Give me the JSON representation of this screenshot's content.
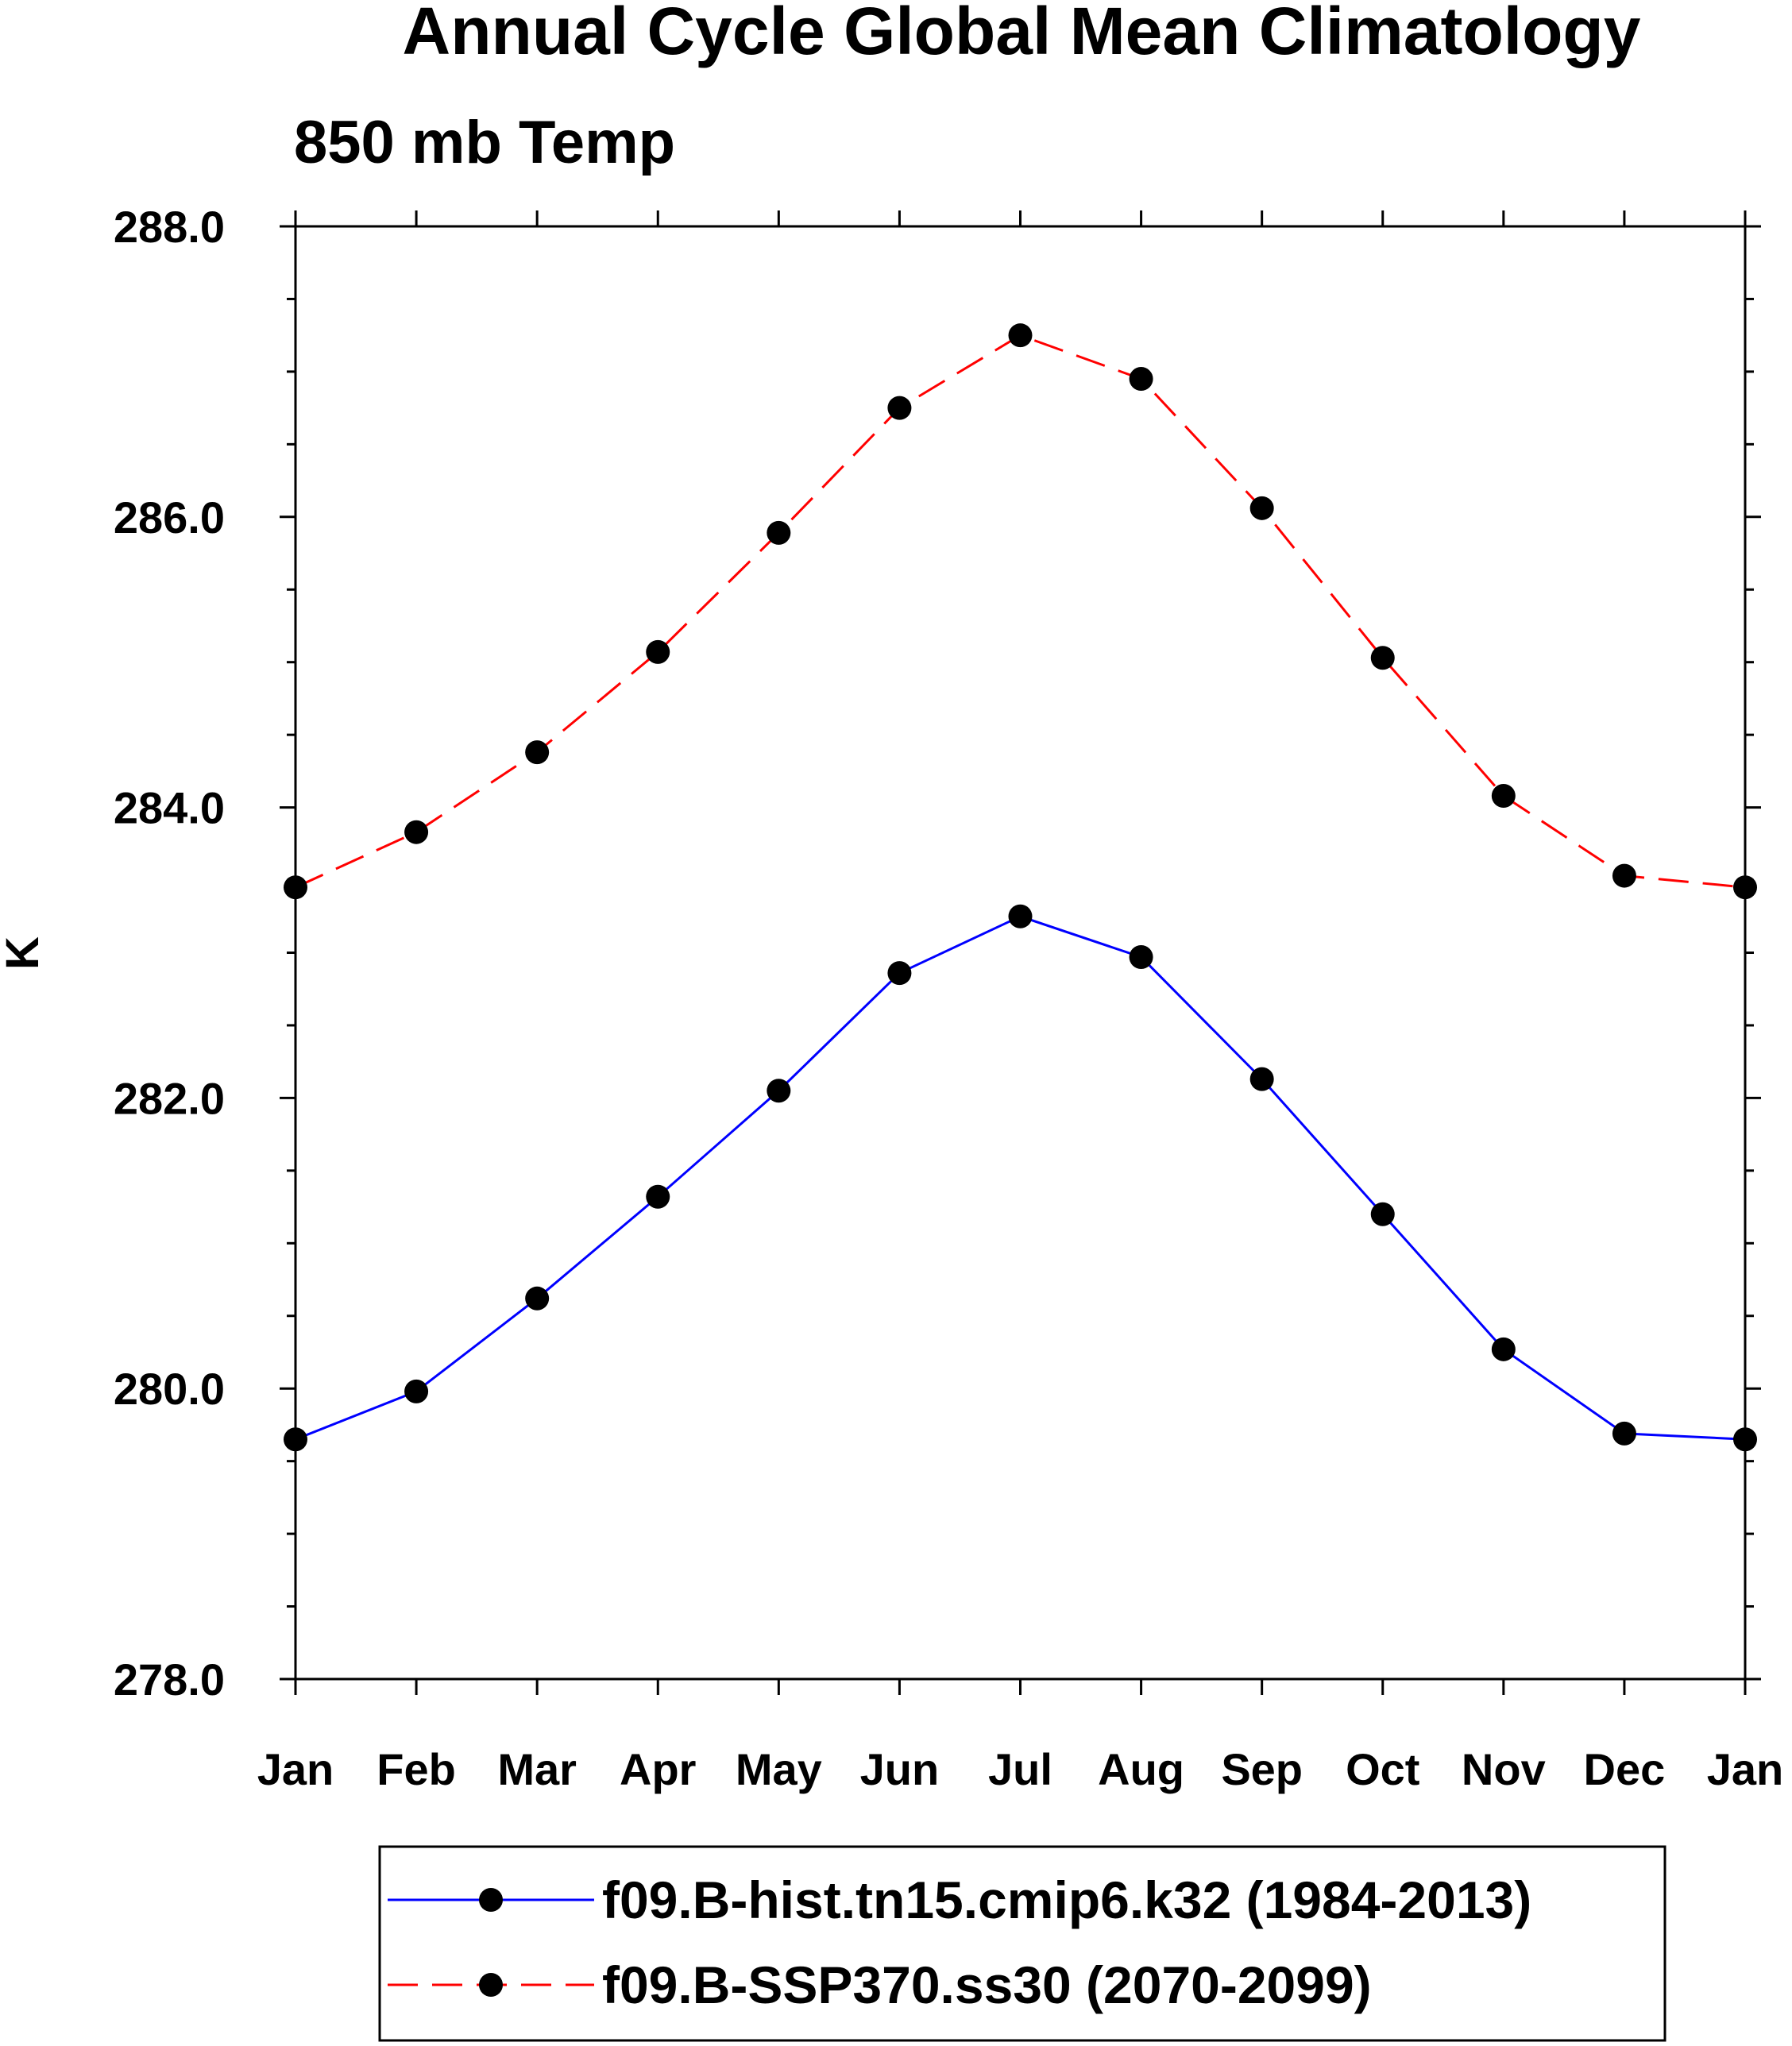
{
  "chart_data": {
    "type": "line",
    "title": "Annual Cycle Global Mean Climatology",
    "subtitle": "850 mb Temp",
    "ylabel": "K",
    "xlabel": "",
    "categories": [
      "Jan",
      "Feb",
      "Mar",
      "Apr",
      "May",
      "Jun",
      "Jul",
      "Aug",
      "Sep",
      "Oct",
      "Nov",
      "Dec",
      "Jan"
    ],
    "ylim": [
      278.0,
      288.0
    ],
    "yticks": [
      "278.0",
      "280.0",
      "282.0",
      "284.0",
      "286.0",
      "288.0"
    ],
    "ytick_values": [
      278,
      280,
      282,
      284,
      286,
      288
    ],
    "y_minor_step": 0.5,
    "grid": false,
    "legend_position": "bottom",
    "series": [
      {
        "name": "f09.B-hist.tn15.cmip6.k32 (1984-2013)",
        "color": "#0000ff",
        "style": "solid",
        "marker": "dot",
        "values": [
          279.65,
          279.98,
          280.62,
          281.32,
          282.05,
          282.86,
          283.25,
          282.97,
          282.13,
          281.2,
          280.27,
          279.69,
          279.65
        ]
      },
      {
        "name": "f09.B-SSP370.ss30 (2070-2099)",
        "color": "#ff0000",
        "style": "dashed",
        "marker": "dot",
        "values": [
          283.45,
          283.83,
          284.38,
          285.07,
          285.89,
          286.75,
          287.25,
          286.95,
          286.06,
          285.03,
          284.08,
          283.53,
          283.45
        ]
      }
    ]
  }
}
